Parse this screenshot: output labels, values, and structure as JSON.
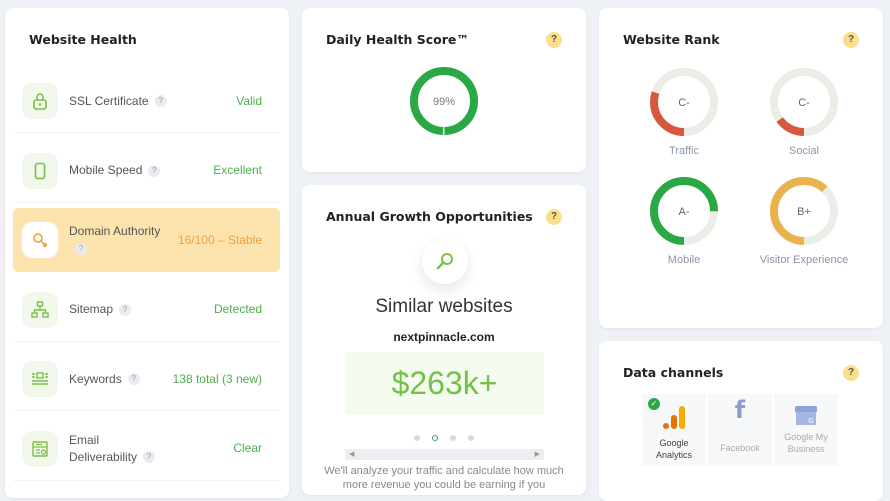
{
  "website_health": {
    "title": "Website Health",
    "items": [
      {
        "label": "SSL Certificate",
        "value": "Valid",
        "icon": "lock-icon"
      },
      {
        "label": "Mobile Speed",
        "value": "Excellent",
        "icon": "mobile-icon"
      },
      {
        "label": "Domain Authority",
        "value": "16/100 – Stable",
        "icon": "key-icon",
        "highlighted": true
      },
      {
        "label": "Sitemap",
        "value": "Detected",
        "icon": "sitemap-icon"
      },
      {
        "label": "Keywords",
        "value": "138 total (3 new)",
        "icon": "keywords-icon"
      },
      {
        "label": "Email Deliverability",
        "value": "Clear",
        "icon": "email-icon"
      }
    ],
    "help": "?"
  },
  "daily_health": {
    "title": "Daily Health Score™",
    "score_label": "99%",
    "score": 99,
    "help": "?",
    "color": "#2aa845"
  },
  "growth": {
    "title": "Annual Growth Opportunities",
    "help": "?",
    "heading": "Similar websites",
    "domain": "nextpinnacle.com",
    "amount": "$263k+",
    "active_dot": 1,
    "dots": 4,
    "description": "We'll analyze your traffic and calculate how much more revenue you could be earning if you"
  },
  "website_rank": {
    "title": "Website Rank",
    "help": "?",
    "items": [
      {
        "label": "Traffic",
        "grade": "C-",
        "fill": 30,
        "color": "#d9573f"
      },
      {
        "label": "Social",
        "grade": "C-",
        "fill": 15,
        "color": "#d9573f"
      },
      {
        "label": "Mobile",
        "grade": "A-",
        "fill": 75,
        "color": "#2aa845"
      },
      {
        "label": "Visitor Experience",
        "grade": "B+",
        "fill": 62,
        "color": "#eab24c"
      }
    ]
  },
  "data_channels": {
    "title": "Data channels",
    "help": "?",
    "items": [
      {
        "label": "Google Analytics",
        "connected": true
      },
      {
        "label": "Facebook",
        "connected": false
      },
      {
        "label": "Google My Business",
        "connected": false
      }
    ]
  }
}
